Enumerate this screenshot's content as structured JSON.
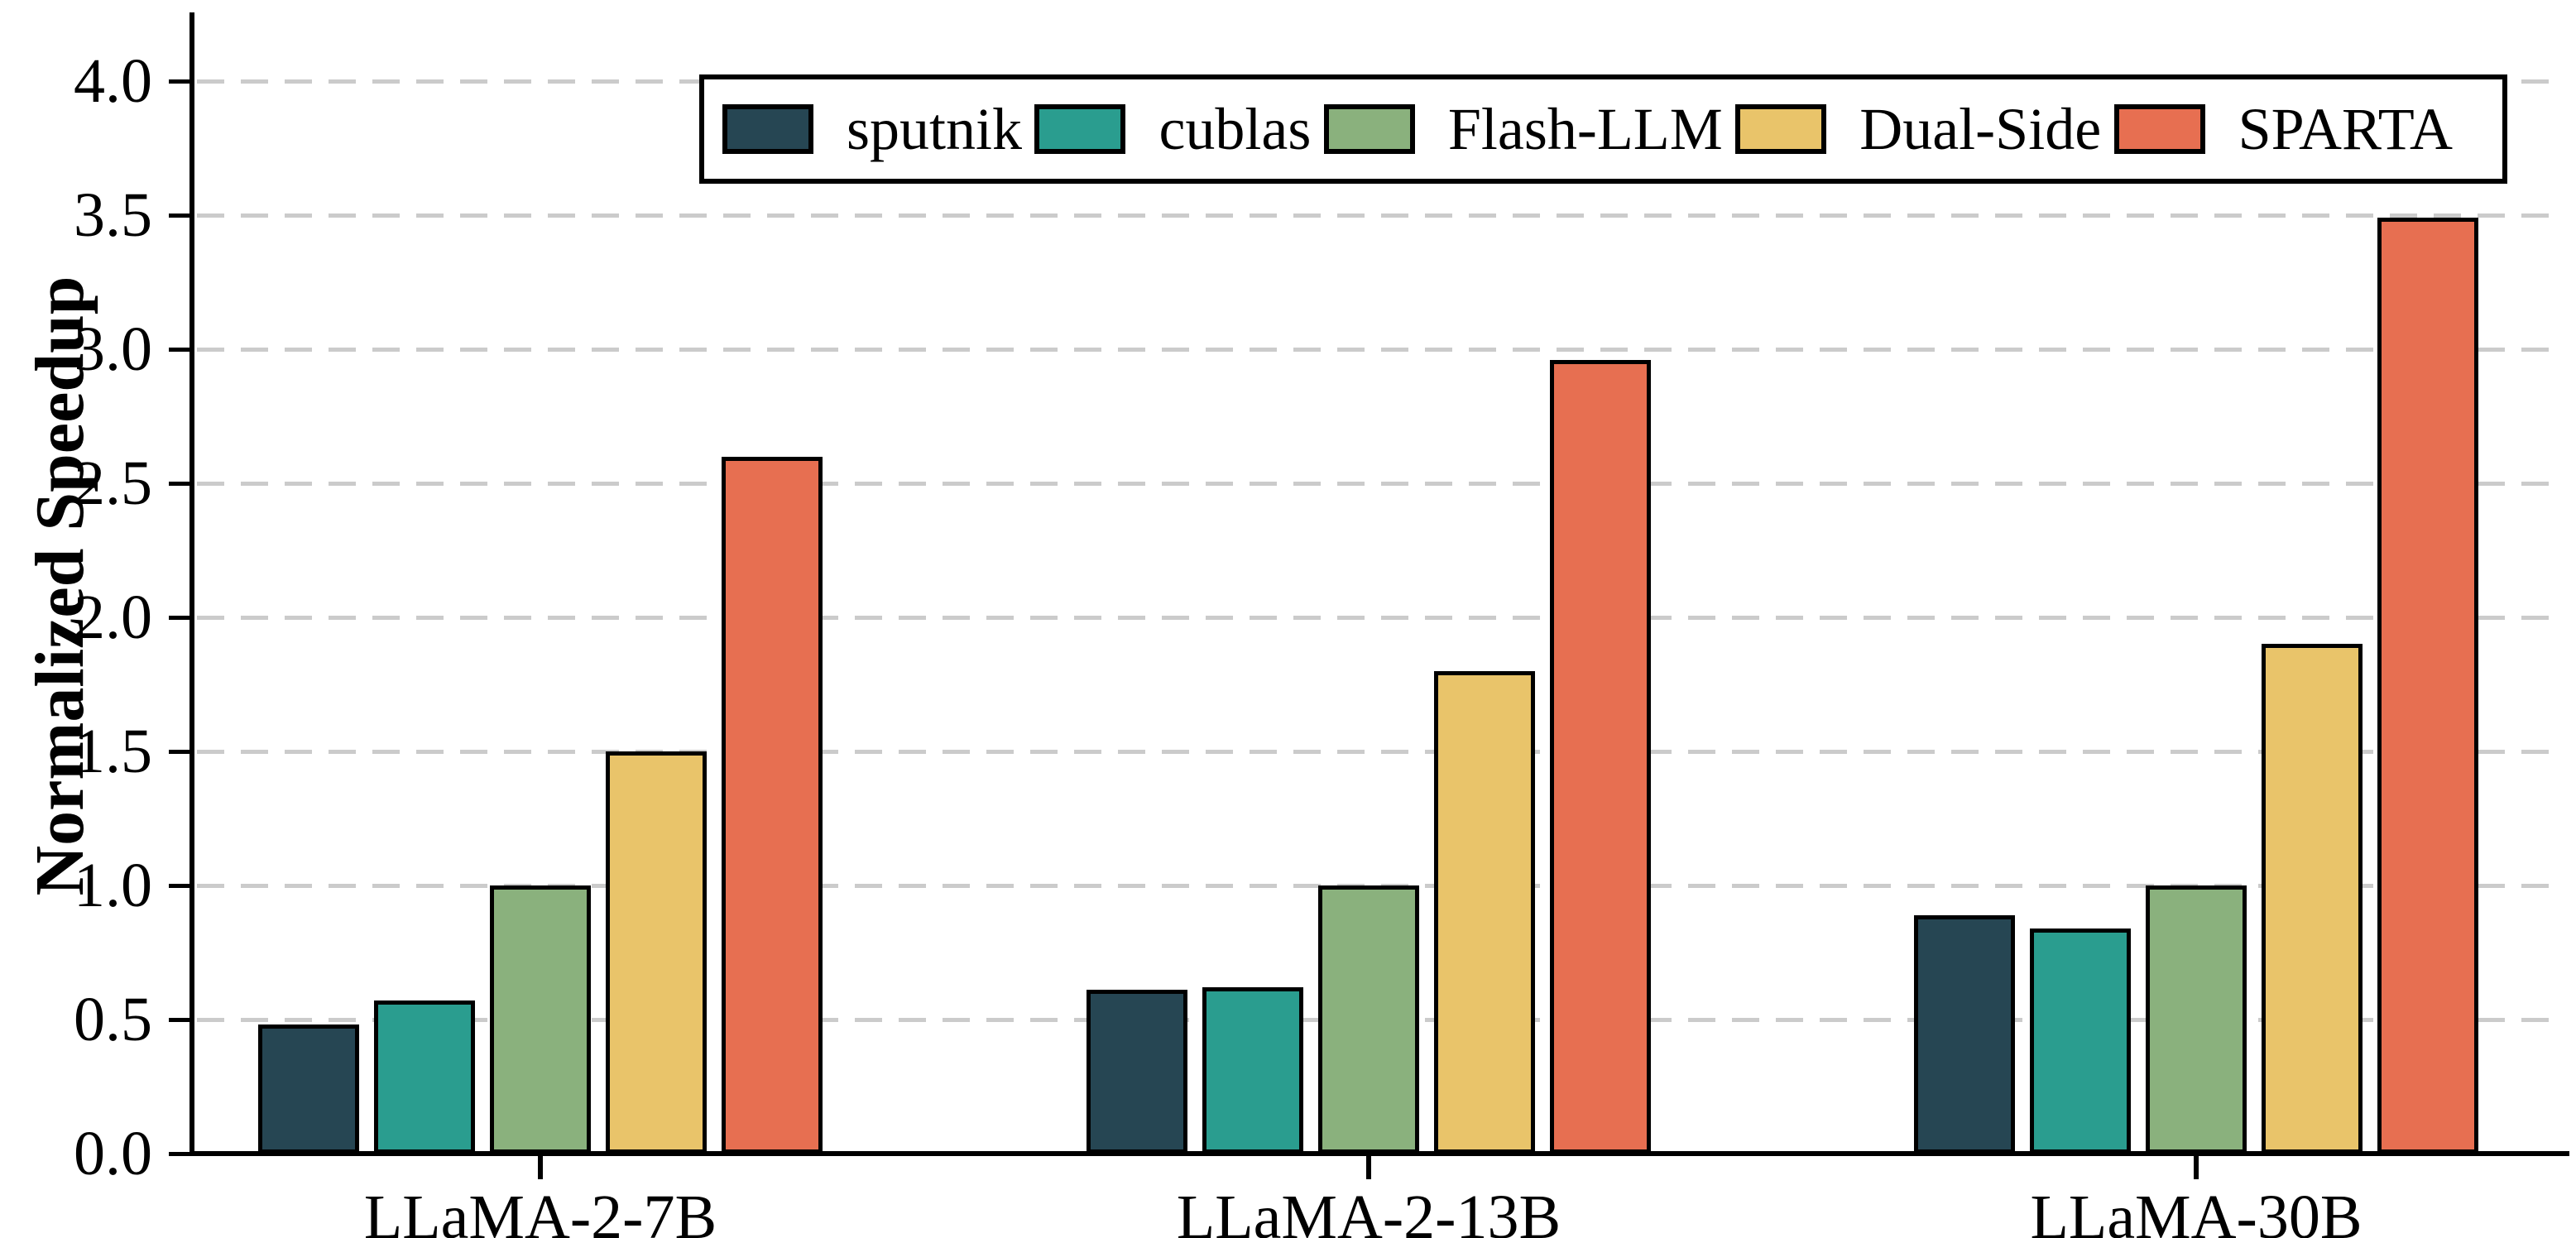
{
  "chart_data": {
    "type": "bar",
    "title": "",
    "xlabel": "",
    "ylabel": "Normalized Speedup",
    "categories": [
      "LLaMA-2-7B",
      "LLaMA-2-13B",
      "LLaMA-30B"
    ],
    "series": [
      {
        "name": "sputnik",
        "color": "#264653",
        "values": [
          0.48,
          0.61,
          0.89
        ]
      },
      {
        "name": "cublas",
        "color": "#2A9D8F",
        "values": [
          0.57,
          0.62,
          0.84
        ]
      },
      {
        "name": "Flash-LLM",
        "color": "#8AB17D",
        "values": [
          1.0,
          1.0,
          1.0
        ]
      },
      {
        "name": "Dual-Side",
        "color": "#E9C46A",
        "values": [
          1.5,
          1.8,
          1.9
        ]
      },
      {
        "name": "SPARTA",
        "color": "#E76F51",
        "values": [
          2.6,
          2.96,
          3.49
        ]
      }
    ],
    "ylim": [
      0,
      4.25
    ],
    "ytick_labels": [
      "0.0",
      "0.5",
      "1.0",
      "1.5",
      "2.0",
      "2.5",
      "3.0",
      "3.5",
      "4.0"
    ],
    "grid": "horizontal-dashed",
    "legend_position": "top",
    "colors": {
      "axis": "#000000",
      "gridline": "#cbcbcb",
      "background": "#ffffff"
    }
  }
}
